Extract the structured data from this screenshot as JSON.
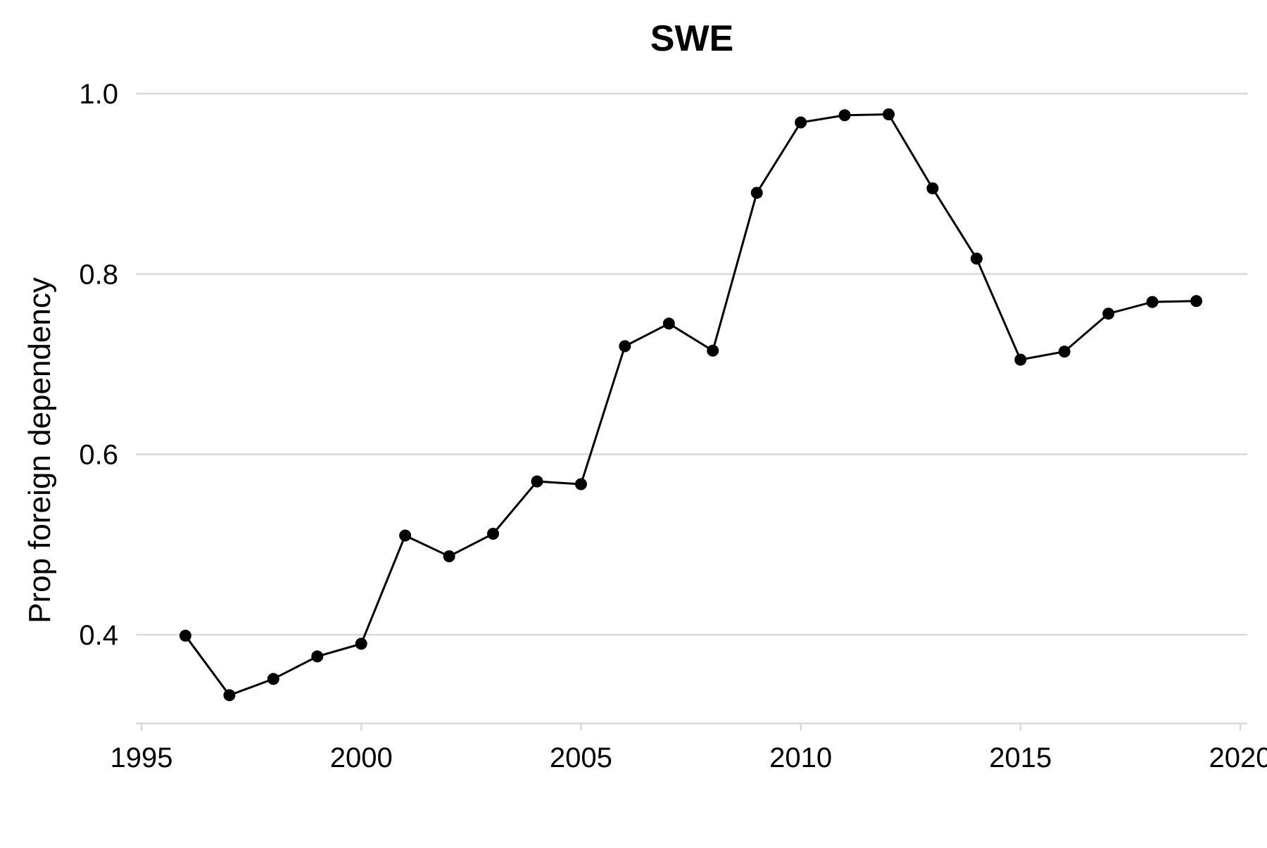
{
  "chart_data": {
    "type": "line",
    "title": "SWE",
    "xlabel": "",
    "ylabel": "Prop foreign dependency",
    "xlim": [
      1995,
      2020
    ],
    "ylim": [
      0.3,
      1.0
    ],
    "x_ticks": [
      1995,
      2000,
      2005,
      2010,
      2015,
      2020
    ],
    "y_ticks": [
      0.4,
      0.6,
      0.8,
      1.0
    ],
    "x_tick_labels": [
      "1995",
      "2000",
      "2005",
      "2010",
      "2015",
      "2020"
    ],
    "y_tick_labels": [
      "0.4",
      "0.6",
      "0.8",
      "1.0"
    ],
    "grid": "horizontal",
    "legend": "none",
    "series": [
      {
        "color": "#000000",
        "x": [
          1996,
          1997,
          1998,
          1999,
          2000,
          2001,
          2002,
          2003,
          2004,
          2005,
          2006,
          2007,
          2008,
          2009,
          2010,
          2011,
          2012,
          2013,
          2014,
          2015,
          2016,
          2017,
          2018,
          2019
        ],
        "values": [
          0.399,
          0.333,
          0.351,
          0.376,
          0.39,
          0.51,
          0.487,
          0.512,
          0.57,
          0.567,
          0.72,
          0.745,
          0.715,
          0.89,
          0.968,
          0.976,
          0.977,
          0.895,
          0.817,
          0.705,
          0.714,
          0.756,
          0.769,
          0.77
        ]
      }
    ]
  }
}
